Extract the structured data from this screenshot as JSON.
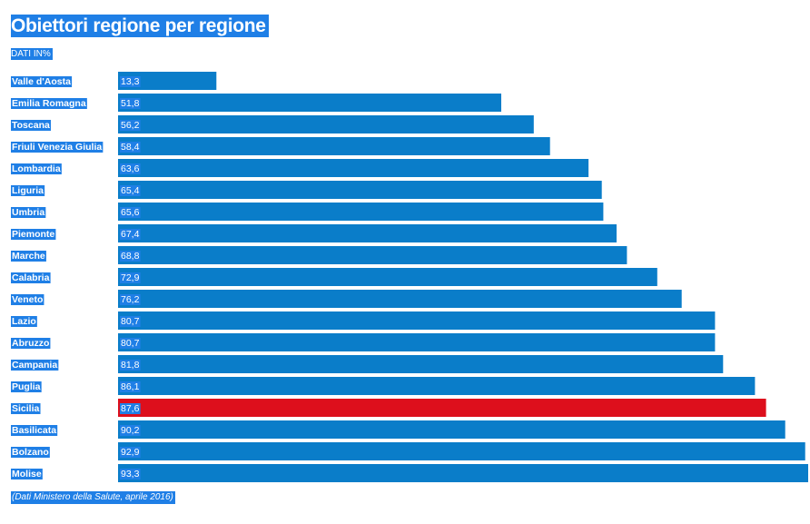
{
  "title": "Obiettori regione per regione",
  "subtitle": "DATI IN%",
  "source": "(Dati Ministero della Salute, aprile 2016)",
  "colors": {
    "bar": "#0a7dc9",
    "highlight_bar": "#dd0f1c",
    "label_highlight": "#1f7fe6",
    "text": "#ffffff"
  },
  "chart_data": {
    "type": "bar",
    "orientation": "horizontal",
    "title": "Obiettori regione per regione",
    "subtitle": "DATI IN%",
    "categories": [
      "Valle d'Aosta",
      "Emilia Romagna",
      "Toscana",
      "Friuli Venezia Giulia",
      "Lombardia",
      "Liguria",
      "Umbria",
      "Piemonte",
      "Marche",
      "Calabria",
      "Veneto",
      "Lazio",
      "Abruzzo",
      "Campania",
      "Puglia",
      "Sicilia",
      "Basilicata",
      "Bolzano",
      "Molise"
    ],
    "values": [
      13.3,
      51.8,
      56.2,
      58.4,
      63.6,
      65.4,
      65.6,
      67.4,
      68.8,
      72.9,
      76.2,
      80.7,
      80.7,
      81.8,
      86.1,
      87.6,
      90.2,
      92.9,
      93.3
    ],
    "value_labels": [
      "13,3",
      "51,8",
      "56,2",
      "58,4",
      "63,6",
      "65,4",
      "65,6",
      "67,4",
      "68,8",
      "72,9",
      "76,2",
      "80,7",
      "80,7",
      "81,8",
      "86,1",
      "87,6",
      "90,2",
      "92,9",
      "93,3"
    ],
    "highlighted_category": "Sicilia",
    "xlim": [
      0,
      93.3
    ],
    "grid": false,
    "legend": "none"
  }
}
